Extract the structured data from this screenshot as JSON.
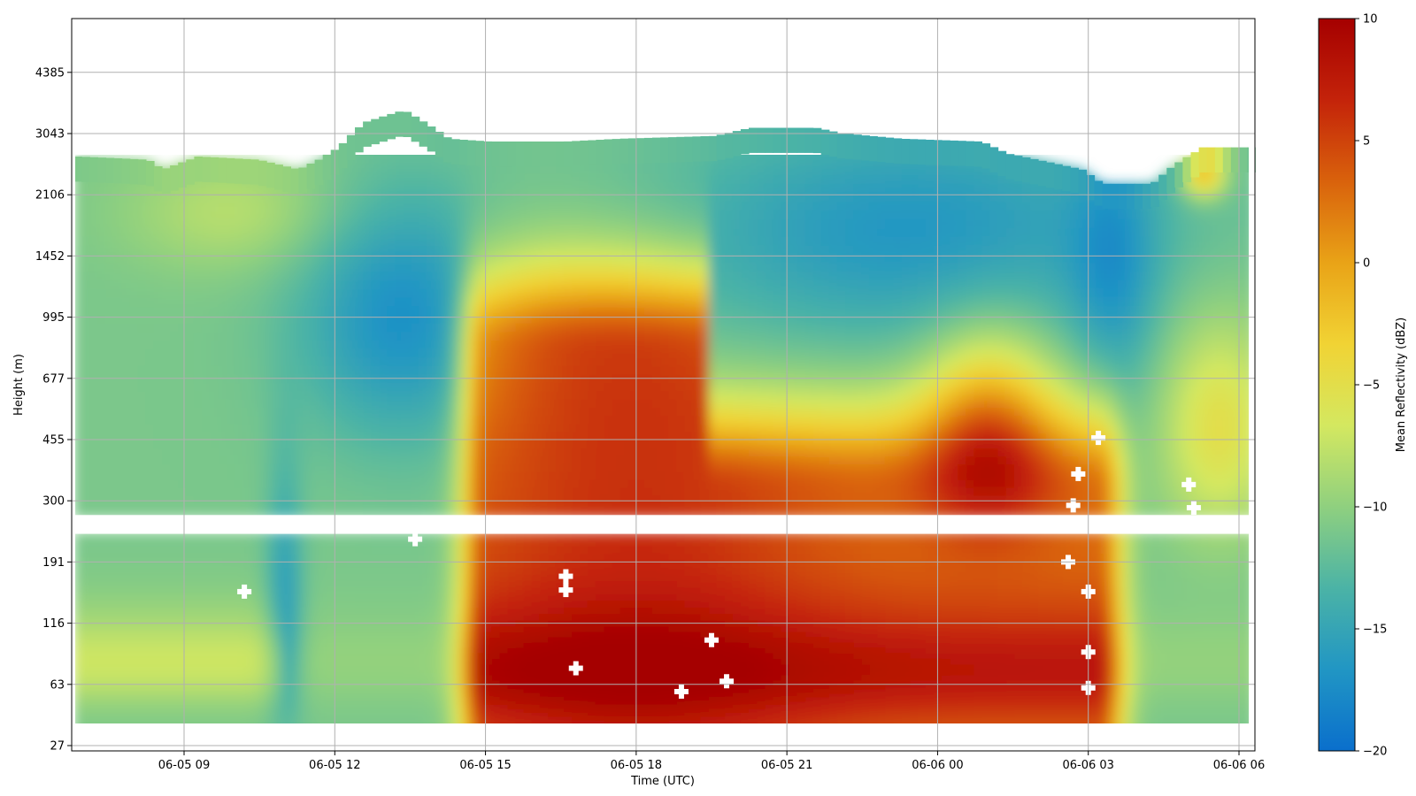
{
  "chart_data": {
    "type": "heatmap",
    "title": "",
    "xlabel": "Time (UTC)",
    "ylabel": "Height (m)",
    "x_ticks": [
      "06-05 09",
      "06-05 12",
      "06-05 15",
      "06-05 18",
      "06-05 21",
      "06-06 00",
      "06-06 03",
      "06-06 06"
    ],
    "x_tick_hours": [
      9,
      12,
      15,
      18,
      21,
      24,
      27,
      30
    ],
    "x_range_hours": [
      6.8,
      30.3
    ],
    "y_ticks": [
      "27",
      "63",
      "116",
      "191",
      "300",
      "455",
      "677",
      "995",
      "1452",
      "2106",
      "3043",
      "4385"
    ],
    "y_tick_values": [
      27,
      63,
      116,
      191,
      300,
      455,
      677,
      995,
      1452,
      2106,
      3043,
      4385
    ],
    "y_range_m": [
      25,
      6100
    ],
    "grid": true,
    "colorbar": {
      "label": "Mean Reflectivity (dBZ)",
      "min": -20,
      "max": 10,
      "ticks": [
        "10",
        "5",
        "0",
        "−5",
        "−10",
        "−15",
        "−20"
      ],
      "tick_values": [
        10,
        5,
        0,
        -5,
        -10,
        -15,
        -20
      ],
      "colormap": [
        "#0a6fcc",
        "#2196c4",
        "#4bb3a6",
        "#8fd07f",
        "#d4e860",
        "#f1d334",
        "#e9a317",
        "#d9620c",
        "#c4230a",
        "#a50000"
      ]
    },
    "data_gap_height_m": [
      235,
      270
    ],
    "echo_regions": [
      {
        "time_hours": [
          6.8,
          11.2
        ],
        "height_m": [
          30,
          2600
        ],
        "mean_dbz": -11
      },
      {
        "time_hours": [
          11.2,
          15.0
        ],
        "height_m": [
          30,
          3300
        ],
        "mean_dbz": -13
      },
      {
        "time_hours": [
          15.0,
          24.8
        ],
        "height_m": [
          30,
          3000
        ],
        "mean_dbz": -14
      },
      {
        "time_hours": [
          15.0,
          23.5
        ],
        "height_m": [
          30,
          300
        ],
        "mean_dbz": 6
      },
      {
        "time_hours": [
          24.8,
          28.2
        ],
        "height_m": [
          30,
          2200
        ],
        "mean_dbz": -15
      },
      {
        "time_hours": [
          28.2,
          30.3
        ],
        "height_m": [
          30,
          2700
        ],
        "mean_dbz": -8
      }
    ]
  }
}
